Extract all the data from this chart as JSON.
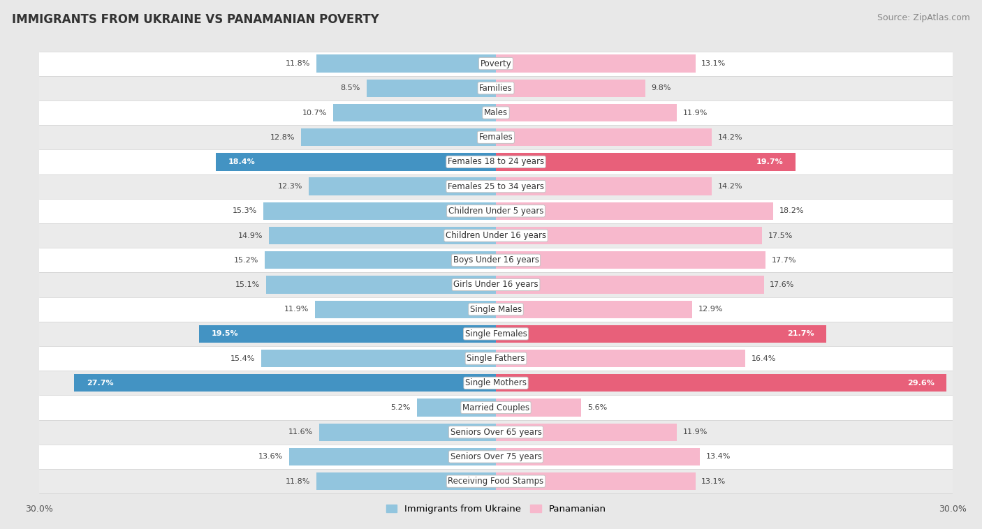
{
  "title": "IMMIGRANTS FROM UKRAINE VS PANAMANIAN POVERTY",
  "source": "Source: ZipAtlas.com",
  "categories": [
    "Poverty",
    "Families",
    "Males",
    "Females",
    "Females 18 to 24 years",
    "Females 25 to 34 years",
    "Children Under 5 years",
    "Children Under 16 years",
    "Boys Under 16 years",
    "Girls Under 16 years",
    "Single Males",
    "Single Females",
    "Single Fathers",
    "Single Mothers",
    "Married Couples",
    "Seniors Over 65 years",
    "Seniors Over 75 years",
    "Receiving Food Stamps"
  ],
  "ukraine_values": [
    11.8,
    8.5,
    10.7,
    12.8,
    18.4,
    12.3,
    15.3,
    14.9,
    15.2,
    15.1,
    11.9,
    19.5,
    15.4,
    27.7,
    5.2,
    11.6,
    13.6,
    11.8
  ],
  "panama_values": [
    13.1,
    9.8,
    11.9,
    14.2,
    19.7,
    14.2,
    18.2,
    17.5,
    17.7,
    17.6,
    12.9,
    21.7,
    16.4,
    29.6,
    5.6,
    11.9,
    13.4,
    13.1
  ],
  "ukraine_color_normal": "#92C5DE",
  "panama_color_normal": "#F7B8CC",
  "ukraine_color_highlight": "#4393C3",
  "panama_color_highlight": "#E8607A",
  "row_colors": [
    "#FFFFFF",
    "#EBEBEB"
  ],
  "background_color": "#E8E8E8",
  "axis_limit": 30.0,
  "legend_ukraine": "Immigrants from Ukraine",
  "legend_panama": "Panamanian",
  "highlight_rows": [
    4,
    11,
    13
  ],
  "title_fontsize": 12,
  "source_fontsize": 9,
  "label_fontsize": 8.5,
  "value_fontsize": 8
}
